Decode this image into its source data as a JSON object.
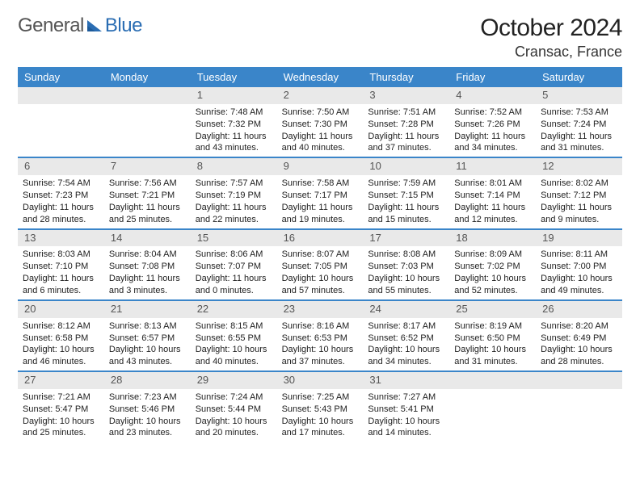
{
  "logo": {
    "part1": "General",
    "part2": "Blue"
  },
  "title": "October 2024",
  "location": "Cransac, France",
  "colors": {
    "header_bg": "#3a85c9",
    "daynum_bg": "#e9e9e9",
    "rule": "#3a85c9",
    "logo_blue": "#2a6db3"
  },
  "weekdays": [
    "Sunday",
    "Monday",
    "Tuesday",
    "Wednesday",
    "Thursday",
    "Friday",
    "Saturday"
  ],
  "weeks": [
    [
      {
        "n": "",
        "lines": [
          "",
          "",
          ""
        ]
      },
      {
        "n": "",
        "lines": [
          "",
          "",
          ""
        ]
      },
      {
        "n": "1",
        "lines": [
          "Sunrise: 7:48 AM",
          "Sunset: 7:32 PM",
          "Daylight: 11 hours and 43 minutes."
        ]
      },
      {
        "n": "2",
        "lines": [
          "Sunrise: 7:50 AM",
          "Sunset: 7:30 PM",
          "Daylight: 11 hours and 40 minutes."
        ]
      },
      {
        "n": "3",
        "lines": [
          "Sunrise: 7:51 AM",
          "Sunset: 7:28 PM",
          "Daylight: 11 hours and 37 minutes."
        ]
      },
      {
        "n": "4",
        "lines": [
          "Sunrise: 7:52 AM",
          "Sunset: 7:26 PM",
          "Daylight: 11 hours and 34 minutes."
        ]
      },
      {
        "n": "5",
        "lines": [
          "Sunrise: 7:53 AM",
          "Sunset: 7:24 PM",
          "Daylight: 11 hours and 31 minutes."
        ]
      }
    ],
    [
      {
        "n": "6",
        "lines": [
          "Sunrise: 7:54 AM",
          "Sunset: 7:23 PM",
          "Daylight: 11 hours and 28 minutes."
        ]
      },
      {
        "n": "7",
        "lines": [
          "Sunrise: 7:56 AM",
          "Sunset: 7:21 PM",
          "Daylight: 11 hours and 25 minutes."
        ]
      },
      {
        "n": "8",
        "lines": [
          "Sunrise: 7:57 AM",
          "Sunset: 7:19 PM",
          "Daylight: 11 hours and 22 minutes."
        ]
      },
      {
        "n": "9",
        "lines": [
          "Sunrise: 7:58 AM",
          "Sunset: 7:17 PM",
          "Daylight: 11 hours and 19 minutes."
        ]
      },
      {
        "n": "10",
        "lines": [
          "Sunrise: 7:59 AM",
          "Sunset: 7:15 PM",
          "Daylight: 11 hours and 15 minutes."
        ]
      },
      {
        "n": "11",
        "lines": [
          "Sunrise: 8:01 AM",
          "Sunset: 7:14 PM",
          "Daylight: 11 hours and 12 minutes."
        ]
      },
      {
        "n": "12",
        "lines": [
          "Sunrise: 8:02 AM",
          "Sunset: 7:12 PM",
          "Daylight: 11 hours and 9 minutes."
        ]
      }
    ],
    [
      {
        "n": "13",
        "lines": [
          "Sunrise: 8:03 AM",
          "Sunset: 7:10 PM",
          "Daylight: 11 hours and 6 minutes."
        ]
      },
      {
        "n": "14",
        "lines": [
          "Sunrise: 8:04 AM",
          "Sunset: 7:08 PM",
          "Daylight: 11 hours and 3 minutes."
        ]
      },
      {
        "n": "15",
        "lines": [
          "Sunrise: 8:06 AM",
          "Sunset: 7:07 PM",
          "Daylight: 11 hours and 0 minutes."
        ]
      },
      {
        "n": "16",
        "lines": [
          "Sunrise: 8:07 AM",
          "Sunset: 7:05 PM",
          "Daylight: 10 hours and 57 minutes."
        ]
      },
      {
        "n": "17",
        "lines": [
          "Sunrise: 8:08 AM",
          "Sunset: 7:03 PM",
          "Daylight: 10 hours and 55 minutes."
        ]
      },
      {
        "n": "18",
        "lines": [
          "Sunrise: 8:09 AM",
          "Sunset: 7:02 PM",
          "Daylight: 10 hours and 52 minutes."
        ]
      },
      {
        "n": "19",
        "lines": [
          "Sunrise: 8:11 AM",
          "Sunset: 7:00 PM",
          "Daylight: 10 hours and 49 minutes."
        ]
      }
    ],
    [
      {
        "n": "20",
        "lines": [
          "Sunrise: 8:12 AM",
          "Sunset: 6:58 PM",
          "Daylight: 10 hours and 46 minutes."
        ]
      },
      {
        "n": "21",
        "lines": [
          "Sunrise: 8:13 AM",
          "Sunset: 6:57 PM",
          "Daylight: 10 hours and 43 minutes."
        ]
      },
      {
        "n": "22",
        "lines": [
          "Sunrise: 8:15 AM",
          "Sunset: 6:55 PM",
          "Daylight: 10 hours and 40 minutes."
        ]
      },
      {
        "n": "23",
        "lines": [
          "Sunrise: 8:16 AM",
          "Sunset: 6:53 PM",
          "Daylight: 10 hours and 37 minutes."
        ]
      },
      {
        "n": "24",
        "lines": [
          "Sunrise: 8:17 AM",
          "Sunset: 6:52 PM",
          "Daylight: 10 hours and 34 minutes."
        ]
      },
      {
        "n": "25",
        "lines": [
          "Sunrise: 8:19 AM",
          "Sunset: 6:50 PM",
          "Daylight: 10 hours and 31 minutes."
        ]
      },
      {
        "n": "26",
        "lines": [
          "Sunrise: 8:20 AM",
          "Sunset: 6:49 PM",
          "Daylight: 10 hours and 28 minutes."
        ]
      }
    ],
    [
      {
        "n": "27",
        "lines": [
          "Sunrise: 7:21 AM",
          "Sunset: 5:47 PM",
          "Daylight: 10 hours and 25 minutes."
        ]
      },
      {
        "n": "28",
        "lines": [
          "Sunrise: 7:23 AM",
          "Sunset: 5:46 PM",
          "Daylight: 10 hours and 23 minutes."
        ]
      },
      {
        "n": "29",
        "lines": [
          "Sunrise: 7:24 AM",
          "Sunset: 5:44 PM",
          "Daylight: 10 hours and 20 minutes."
        ]
      },
      {
        "n": "30",
        "lines": [
          "Sunrise: 7:25 AM",
          "Sunset: 5:43 PM",
          "Daylight: 10 hours and 17 minutes."
        ]
      },
      {
        "n": "31",
        "lines": [
          "Sunrise: 7:27 AM",
          "Sunset: 5:41 PM",
          "Daylight: 10 hours and 14 minutes."
        ]
      },
      {
        "n": "",
        "lines": [
          "",
          "",
          ""
        ]
      },
      {
        "n": "",
        "lines": [
          "",
          "",
          ""
        ]
      }
    ]
  ]
}
